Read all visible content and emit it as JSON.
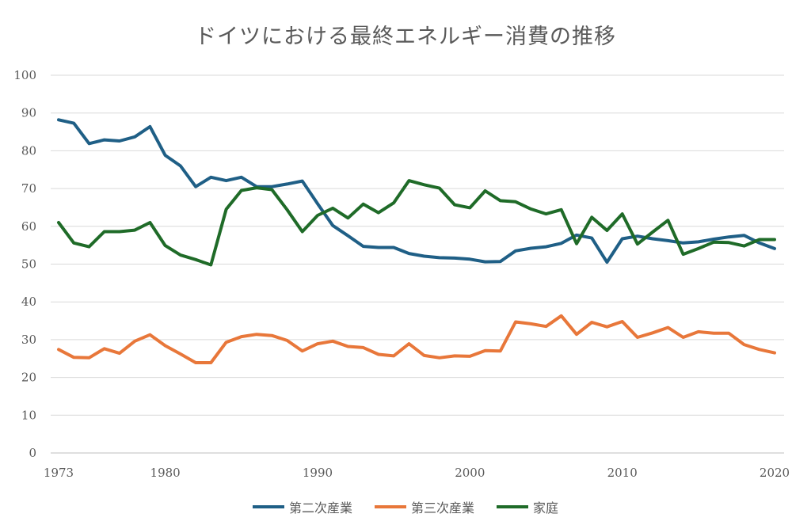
{
  "chart_data": {
    "type": "line",
    "title": "ドイツにおける最終エネルギー消費の推移",
    "xlabel": "",
    "ylabel": "",
    "xlim": [
      1973,
      2020
    ],
    "ylim": [
      0,
      100
    ],
    "x_ticks": [
      1973,
      1980,
      1990,
      2000,
      2010,
      2020
    ],
    "y_ticks": [
      0,
      10,
      20,
      30,
      40,
      50,
      60,
      70,
      80,
      90,
      100
    ],
    "grid": "horizontal",
    "legend": "bottom",
    "x": [
      1973,
      1974,
      1975,
      1976,
      1977,
      1978,
      1979,
      1980,
      1981,
      1982,
      1983,
      1984,
      1985,
      1986,
      1987,
      1988,
      1989,
      1990,
      1991,
      1992,
      1993,
      1994,
      1995,
      1996,
      1997,
      1998,
      1999,
      2000,
      2001,
      2002,
      2003,
      2004,
      2005,
      2006,
      2007,
      2008,
      2009,
      2010,
      2011,
      2012,
      2013,
      2014,
      2015,
      2016,
      2017,
      2018,
      2019,
      2020
    ],
    "series": [
      {
        "name": "第二次産業",
        "color": "#1f5f86",
        "values": [
          88.2,
          87.3,
          81.9,
          82.9,
          82.6,
          83.7,
          86.4,
          78.8,
          76.0,
          70.5,
          73.0,
          72.1,
          73.0,
          70.5,
          70.5,
          71.2,
          72.0,
          66.0,
          60.2,
          57.5,
          54.7,
          54.4,
          54.4,
          52.8,
          52.1,
          51.7,
          51.6,
          51.3,
          50.6,
          50.7,
          53.5,
          54.2,
          54.6,
          55.5,
          57.7,
          56.9,
          50.5,
          56.7,
          57.4,
          56.7,
          56.2,
          55.6,
          55.9,
          56.6,
          57.2,
          57.6,
          55.6,
          54.1
        ]
      },
      {
        "name": "第三次産業",
        "color": "#e8773a",
        "values": [
          27.4,
          25.3,
          25.2,
          27.6,
          26.4,
          29.6,
          31.3,
          28.4,
          26.2,
          23.9,
          23.9,
          29.3,
          30.8,
          31.4,
          31.1,
          29.8,
          27.0,
          28.9,
          29.6,
          28.2,
          27.9,
          26.1,
          25.7,
          28.9,
          25.8,
          25.2,
          25.7,
          25.6,
          27.1,
          27.0,
          34.7,
          34.2,
          33.5,
          36.3,
          31.4,
          34.6,
          33.4,
          34.8,
          30.6,
          31.8,
          33.2,
          30.6,
          32.1,
          31.7,
          31.7,
          28.7,
          27.4,
          26.5
        ]
      },
      {
        "name": "家庭",
        "color": "#1f6b28",
        "values": [
          61.0,
          55.6,
          54.6,
          58.6,
          58.6,
          59.0,
          61.0,
          54.9,
          52.4,
          51.2,
          49.8,
          64.5,
          69.5,
          70.2,
          69.7,
          64.4,
          58.6,
          62.9,
          64.8,
          62.2,
          65.9,
          63.6,
          66.2,
          72.1,
          71.0,
          70.1,
          65.7,
          64.9,
          69.4,
          66.8,
          66.5,
          64.6,
          63.3,
          64.4,
          55.4,
          62.4,
          58.9,
          63.3,
          55.3,
          58.5,
          61.6,
          52.6,
          54.1,
          55.8,
          55.7,
          54.8,
          56.5,
          56.5
        ]
      }
    ]
  }
}
